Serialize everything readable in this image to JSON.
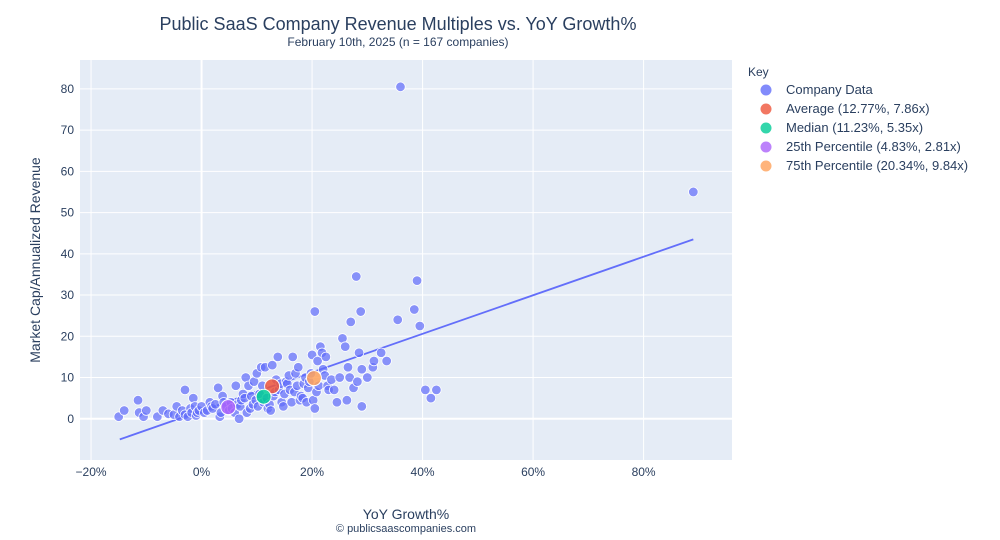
{
  "chart_data": {
    "type": "scatter",
    "title": "Public SaaS Company Revenue Multiples vs. YoY Growth%",
    "subtitle": "February 10th, 2025 (n = 167 companies)",
    "xlabel": "YoY Growth%",
    "ylabel": "Market Cap/Annualized Revenue",
    "footer": "© publicsaascompanies.com",
    "xlim": [
      -22,
      96
    ],
    "ylim": [
      -10,
      87
    ],
    "x_ticks": [
      -20,
      0,
      20,
      40,
      60,
      80
    ],
    "x_tick_labels": [
      "−20%",
      "0%",
      "20%",
      "40%",
      "60%",
      "80%"
    ],
    "y_ticks": [
      0,
      10,
      20,
      30,
      40,
      50,
      60,
      70,
      80
    ],
    "y_tick_labels": [
      "0",
      "10",
      "20",
      "30",
      "40",
      "50",
      "60",
      "70",
      "80"
    ],
    "grid": true,
    "legend_title": "Key",
    "legend_position": "right",
    "series": [
      {
        "name": "Company Data",
        "color": "#636efa",
        "points": [
          [
            -15,
            0.5
          ],
          [
            -14,
            2
          ],
          [
            -11.5,
            4.5
          ],
          [
            -11.3,
            1.5
          ],
          [
            -10.5,
            0.5
          ],
          [
            -10,
            2
          ],
          [
            -8,
            0.5
          ],
          [
            -7,
            2
          ],
          [
            -6,
            1.2
          ],
          [
            -5,
            1
          ],
          [
            -4.5,
            3
          ],
          [
            -4,
            0.5
          ],
          [
            -3.5,
            2
          ],
          [
            -3,
            7
          ],
          [
            -3,
            1
          ],
          [
            -2.5,
            0.5
          ],
          [
            -2,
            2.5
          ],
          [
            -1.8,
            1.5
          ],
          [
            -1.5,
            5
          ],
          [
            -1.2,
            3
          ],
          [
            -1,
            0.8
          ],
          [
            -0.8,
            1.5
          ],
          [
            -0.5,
            2
          ],
          [
            0,
            3
          ],
          [
            0.5,
            1.5
          ],
          [
            1,
            2
          ],
          [
            1.5,
            4
          ],
          [
            1.8,
            3
          ],
          [
            2,
            2.5
          ],
          [
            2.5,
            3.5
          ],
          [
            3,
            7.5
          ],
          [
            3.3,
            0.5
          ],
          [
            3.5,
            1.5
          ],
          [
            3.8,
            5.5
          ],
          [
            4,
            4
          ],
          [
            4.5,
            3
          ],
          [
            5,
            2
          ],
          [
            5.3,
            4
          ],
          [
            5.5,
            2.5
          ],
          [
            6,
            1.5
          ],
          [
            6.2,
            8
          ],
          [
            6.5,
            3.5
          ],
          [
            6.8,
            0
          ],
          [
            7,
            3
          ],
          [
            7.2,
            4.5
          ],
          [
            7.5,
            6
          ],
          [
            7.8,
            5
          ],
          [
            8,
            10
          ],
          [
            8.2,
            1.5
          ],
          [
            8.5,
            8
          ],
          [
            8.8,
            2.5
          ],
          [
            9,
            5.5
          ],
          [
            9.3,
            3.5
          ],
          [
            9.5,
            9
          ],
          [
            9.8,
            4.5
          ],
          [
            10,
            11
          ],
          [
            10.2,
            3
          ],
          [
            10.5,
            6
          ],
          [
            10.8,
            12.5
          ],
          [
            11,
            8
          ],
          [
            11.2,
            4
          ],
          [
            11.5,
            12.5
          ],
          [
            11.8,
            5
          ],
          [
            12,
            2.5
          ],
          [
            12.3,
            3.5
          ],
          [
            12.5,
            2
          ],
          [
            12.8,
            13
          ],
          [
            13,
            5.5
          ],
          [
            13.3,
            6.5
          ],
          [
            13.5,
            9.5
          ],
          [
            13.8,
            15
          ],
          [
            14,
            7
          ],
          [
            14.3,
            8.5
          ],
          [
            14.5,
            4
          ],
          [
            14.8,
            3
          ],
          [
            15,
            6
          ],
          [
            15.3,
            9
          ],
          [
            15.5,
            8.5
          ],
          [
            15.8,
            10.5
          ],
          [
            16,
            7
          ],
          [
            16.3,
            4
          ],
          [
            16.5,
            15
          ],
          [
            16.8,
            6.5
          ],
          [
            17,
            11
          ],
          [
            17.3,
            8
          ],
          [
            17.5,
            12.5
          ],
          [
            17.8,
            4.5
          ],
          [
            18,
            5.5
          ],
          [
            18.3,
            5
          ],
          [
            18.5,
            8.5
          ],
          [
            18.8,
            10
          ],
          [
            19,
            4
          ],
          [
            19.3,
            7.5
          ],
          [
            19.5,
            9
          ],
          [
            19.8,
            11
          ],
          [
            20,
            15.5
          ],
          [
            20.2,
            4.5
          ],
          [
            20.5,
            2.5
          ],
          [
            20.5,
            26
          ],
          [
            20.8,
            6.5
          ],
          [
            21,
            14
          ],
          [
            21.2,
            8
          ],
          [
            21.5,
            17.5
          ],
          [
            21.8,
            16
          ],
          [
            22,
            12
          ],
          [
            22.3,
            10.5
          ],
          [
            22.5,
            15
          ],
          [
            22.8,
            8
          ],
          [
            23,
            7
          ],
          [
            23.5,
            9.5
          ],
          [
            24,
            7
          ],
          [
            24.5,
            4
          ],
          [
            25,
            10
          ],
          [
            25.5,
            19.5
          ],
          [
            26,
            17.5
          ],
          [
            26.3,
            4.5
          ],
          [
            26.5,
            12.5
          ],
          [
            26.8,
            10
          ],
          [
            27,
            23.5
          ],
          [
            27.5,
            7.5
          ],
          [
            28,
            34.5
          ],
          [
            28.2,
            9
          ],
          [
            28.5,
            16
          ],
          [
            28.8,
            26
          ],
          [
            29,
            3
          ],
          [
            29,
            12
          ],
          [
            30,
            10
          ],
          [
            31,
            12.5
          ],
          [
            31.2,
            14
          ],
          [
            32.5,
            16
          ],
          [
            33.5,
            14
          ],
          [
            35.5,
            24
          ],
          [
            36,
            80.5
          ],
          [
            38.5,
            26.5
          ],
          [
            39,
            33.5
          ],
          [
            39.5,
            22.5
          ],
          [
            40.5,
            7
          ],
          [
            41.5,
            5
          ],
          [
            42.5,
            7
          ],
          [
            89,
            55
          ]
        ]
      },
      {
        "name": "Average (12.77%, 7.86x)",
        "color": "#ef553b",
        "points": [
          [
            12.77,
            7.86
          ]
        ]
      },
      {
        "name": "Median (11.23%, 5.35x)",
        "color": "#00cc96",
        "points": [
          [
            11.23,
            5.35
          ]
        ]
      },
      {
        "name": "25th Percentile (4.83%, 2.81x)",
        "color": "#ab63fa",
        "points": [
          [
            4.83,
            2.81
          ]
        ]
      },
      {
        "name": "75th Percentile (20.34%, 9.84x)",
        "color": "#ffa15a",
        "points": [
          [
            20.34,
            9.84
          ]
        ]
      }
    ],
    "trendline": {
      "color": "#636efa",
      "points": [
        [
          -14.8,
          -5
        ],
        [
          89,
          43.5
        ]
      ]
    }
  }
}
